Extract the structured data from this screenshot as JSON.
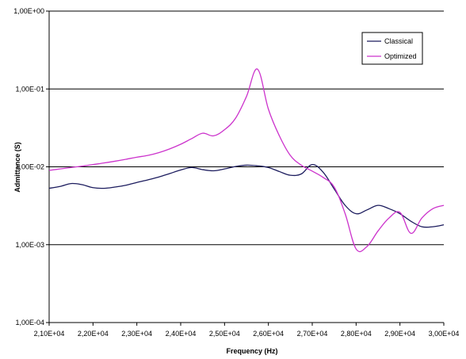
{
  "chart_data": {
    "type": "line",
    "xlabel": "Frequency (Hz)",
    "ylabel": "Admittance (S)",
    "xscale": "linear",
    "yscale": "log",
    "xlim": [
      21000,
      30000
    ],
    "ylim": [
      0.0001,
      1
    ],
    "x_ticks": [
      {
        "value": 21000,
        "label": "2,10E+04"
      },
      {
        "value": 22000,
        "label": "2,20E+04"
      },
      {
        "value": 23000,
        "label": "2,30E+04"
      },
      {
        "value": 24000,
        "label": "2,40E+04"
      },
      {
        "value": 25000,
        "label": "2,50E+04"
      },
      {
        "value": 26000,
        "label": "2,60E+04"
      },
      {
        "value": 27000,
        "label": "2,70E+04"
      },
      {
        "value": 28000,
        "label": "2,80E+04"
      },
      {
        "value": 29000,
        "label": "2,90E+04"
      },
      {
        "value": 30000,
        "label": "3,00E+04"
      }
    ],
    "y_ticks": [
      {
        "value": 1,
        "label": "1,00E+00"
      },
      {
        "value": 0.1,
        "label": "1,00E-01"
      },
      {
        "value": 0.01,
        "label": "1,00E-02"
      },
      {
        "value": 0.001,
        "label": "1,00E-03"
      },
      {
        "value": 0.0001,
        "label": "1,00E-04"
      }
    ],
    "grid": "horizontal major gridlines",
    "legend_position": "top-right",
    "series": [
      {
        "name": "Classical",
        "color": "#1c1c5e",
        "x": [
          21000,
          21250,
          21500,
          21750,
          22000,
          22250,
          22500,
          22750,
          23000,
          23250,
          23500,
          23750,
          24000,
          24250,
          24500,
          24750,
          25000,
          25250,
          25500,
          25750,
          26000,
          26250,
          26500,
          26750,
          27000,
          27250,
          27500,
          27750,
          28000,
          28250,
          28500,
          28750,
          29000,
          29250,
          29500,
          29750,
          30000
        ],
        "y": [
          0.0053,
          0.0056,
          0.0061,
          0.0059,
          0.0054,
          0.0053,
          0.0055,
          0.0058,
          0.0063,
          0.0068,
          0.0074,
          0.0082,
          0.0091,
          0.0098,
          0.0092,
          0.0089,
          0.0094,
          0.0101,
          0.0105,
          0.0103,
          0.0098,
          0.0087,
          0.0078,
          0.0081,
          0.0107,
          0.0085,
          0.0052,
          0.0032,
          0.0025,
          0.0028,
          0.0032,
          0.0029,
          0.0025,
          0.002,
          0.0017,
          0.0017,
          0.0018
        ]
      },
      {
        "name": "Optimized",
        "color": "#cc33cc",
        "x": [
          21000,
          21250,
          21500,
          21750,
          22000,
          22250,
          22500,
          22750,
          23000,
          23250,
          23500,
          23750,
          24000,
          24250,
          24500,
          24750,
          25000,
          25250,
          25500,
          25750,
          26000,
          26250,
          26500,
          26750,
          27000,
          27250,
          27500,
          27750,
          28000,
          28250,
          28500,
          28750,
          29000,
          29250,
          29500,
          29750,
          30000
        ],
        "y": [
          0.009,
          0.0094,
          0.0098,
          0.0102,
          0.0107,
          0.0112,
          0.0118,
          0.0125,
          0.0133,
          0.014,
          0.0152,
          0.017,
          0.0195,
          0.023,
          0.027,
          0.025,
          0.03,
          0.042,
          0.08,
          0.18,
          0.055,
          0.025,
          0.014,
          0.0105,
          0.0088,
          0.0073,
          0.0055,
          0.0025,
          0.00088,
          0.00095,
          0.0015,
          0.0022,
          0.0026,
          0.0014,
          0.0022,
          0.0029,
          0.0032
        ]
      }
    ]
  }
}
